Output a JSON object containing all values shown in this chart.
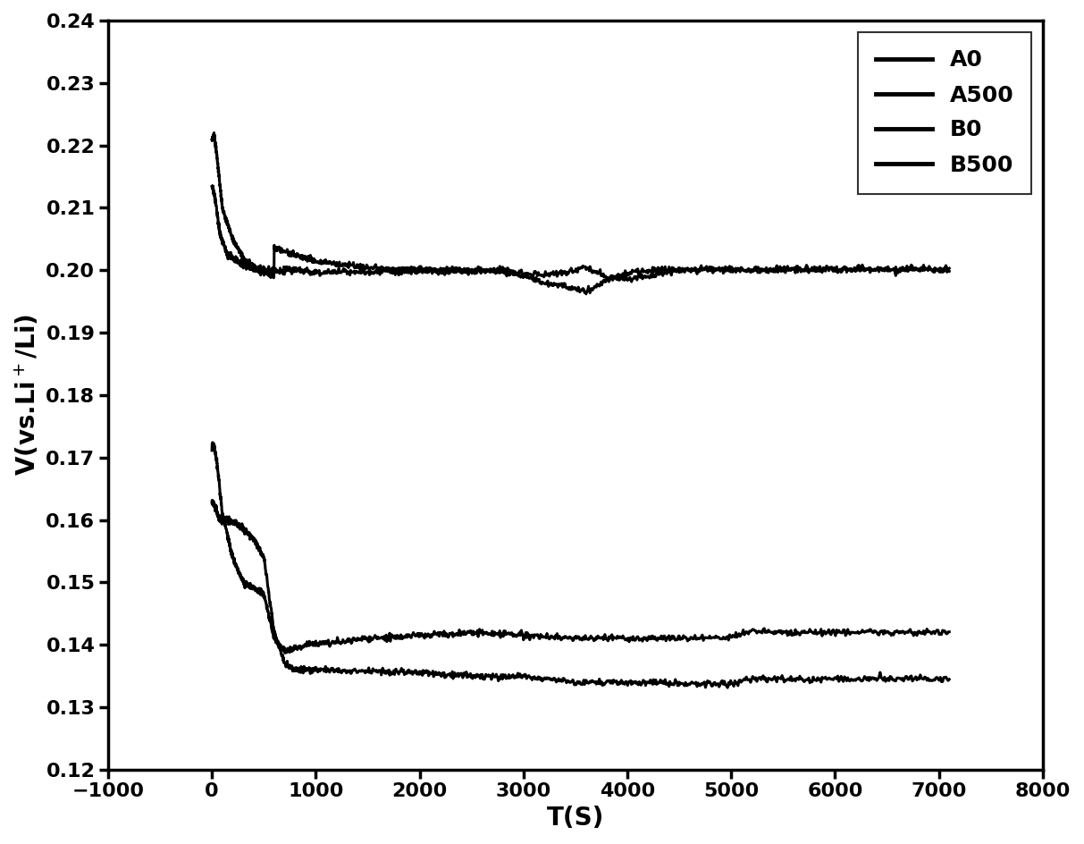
{
  "xlabel": "T(S)",
  "ylabel": "V(vs.Li+/Li)",
  "xlim": [
    -1000,
    8000
  ],
  "ylim": [
    0.12,
    0.24
  ],
  "xticks": [
    -1000,
    0,
    1000,
    2000,
    3000,
    4000,
    5000,
    6000,
    7000,
    8000
  ],
  "yticks": [
    0.12,
    0.13,
    0.14,
    0.15,
    0.16,
    0.17,
    0.18,
    0.19,
    0.2,
    0.21,
    0.22,
    0.23,
    0.24
  ],
  "legend_labels": [
    "A0",
    "A500",
    "B0",
    "B500"
  ],
  "line_color": "#000000",
  "linewidth": 2.2,
  "background_color": "#ffffff",
  "legend_fontsize": 18,
  "axis_fontsize": 20,
  "tick_fontsize": 16,
  "spine_linewidth": 2.5
}
